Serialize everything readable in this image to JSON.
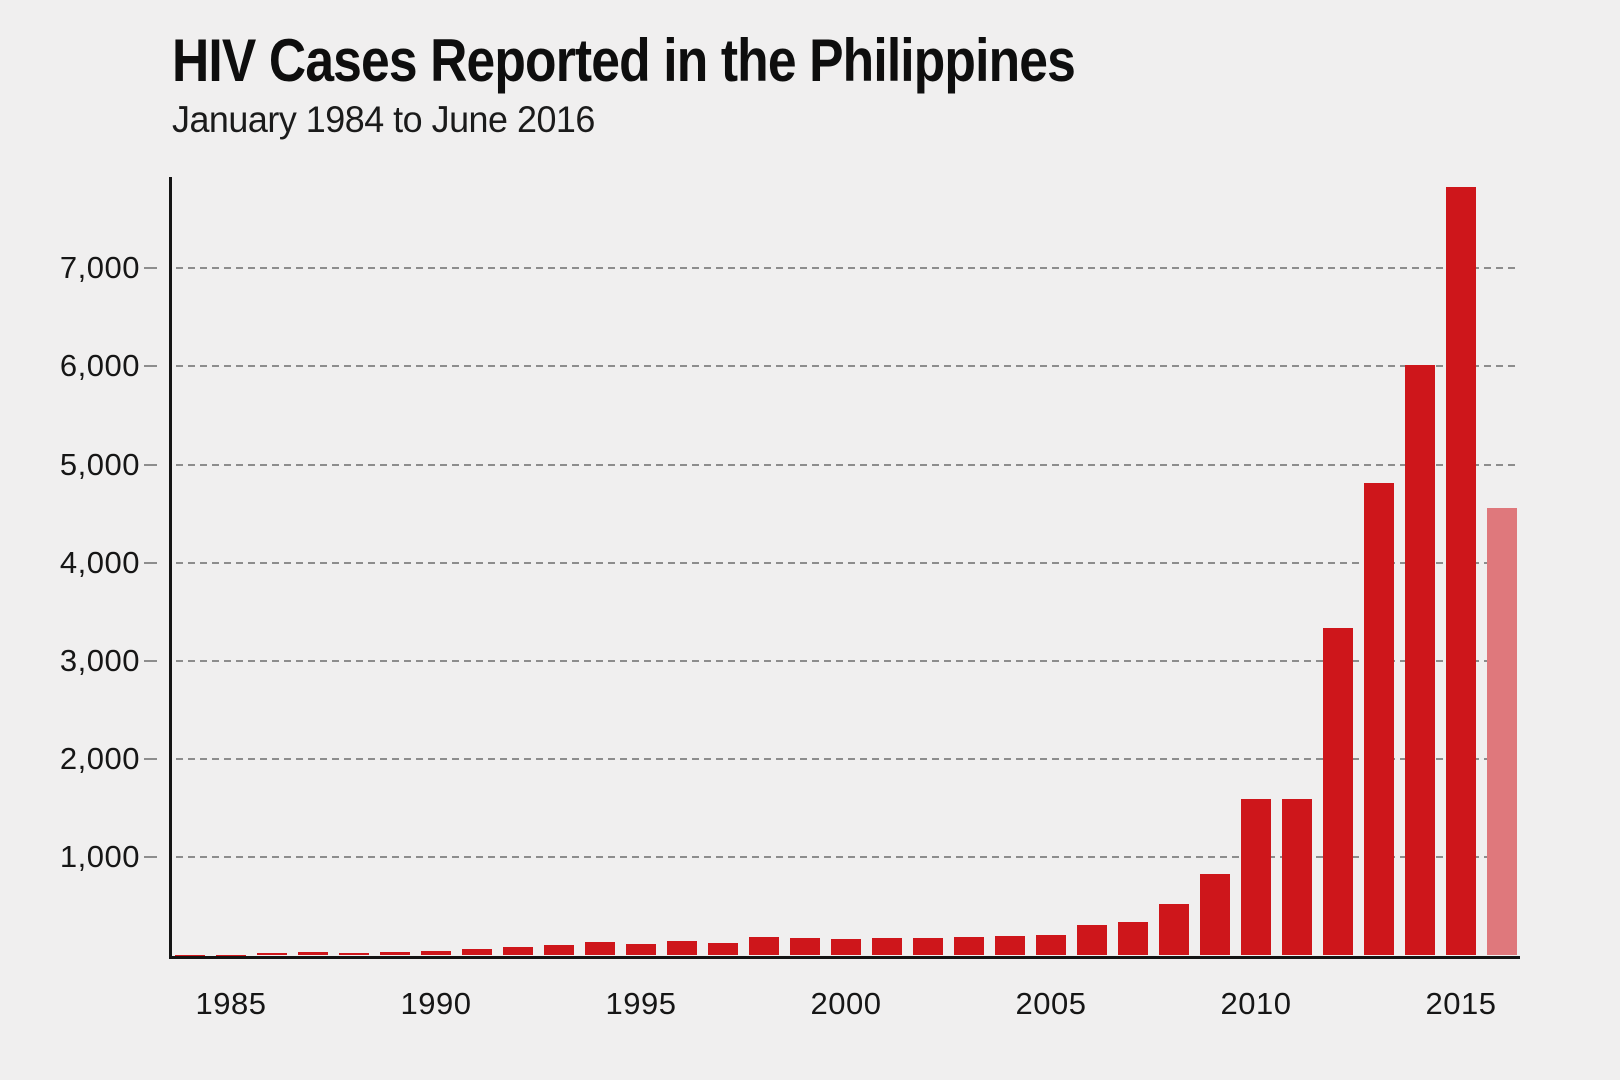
{
  "header": {
    "title": "HIV Cases Reported in the Philippines",
    "subtitle": "January 1984 to June 2016"
  },
  "colors": {
    "background": "#F0EFEF",
    "bar": "#CE161B",
    "bar_partial_year": "#DF787C",
    "axis": "#141414",
    "gridline": "#8D8D8D",
    "text": "#161616"
  },
  "chart_data": {
    "type": "bar",
    "title": "HIV Cases Reported in the Philippines",
    "subtitle": "January 1984 to June 2016",
    "xlabel": "",
    "ylabel": "",
    "x_tick_labels": [
      "1985",
      "1990",
      "1995",
      "2000",
      "2005",
      "2010",
      "2015"
    ],
    "y_tick_labels": [
      "1,000",
      "2,000",
      "3,000",
      "4,000",
      "5,000",
      "6,000",
      "7,000"
    ],
    "y_tick_values": [
      1000,
      2000,
      3000,
      4000,
      5000,
      6000,
      7000
    ],
    "ylim": [
      0,
      7900
    ],
    "grid": "horizontal-dashed",
    "legend": "none",
    "categories": [
      1984,
      1985,
      1986,
      1987,
      1988,
      1989,
      1990,
      1991,
      1992,
      1993,
      1994,
      1995,
      1996,
      1997,
      1998,
      1999,
      2000,
      2001,
      2002,
      2003,
      2004,
      2005,
      2006,
      2007,
      2008,
      2009,
      2010,
      2011,
      2012,
      2013,
      2014,
      2015,
      2016
    ],
    "values": [
      2,
      6,
      21,
      31,
      30,
      32,
      45,
      66,
      83,
      109,
      135,
      120,
      148,
      131,
      187,
      177,
      170,
      174,
      180,
      193,
      199,
      210,
      309,
      342,
      528,
      835,
      1591,
      1591,
      3338,
      4814,
      6011,
      7829,
      4560
    ],
    "partial_year_bar_index": 32
  }
}
